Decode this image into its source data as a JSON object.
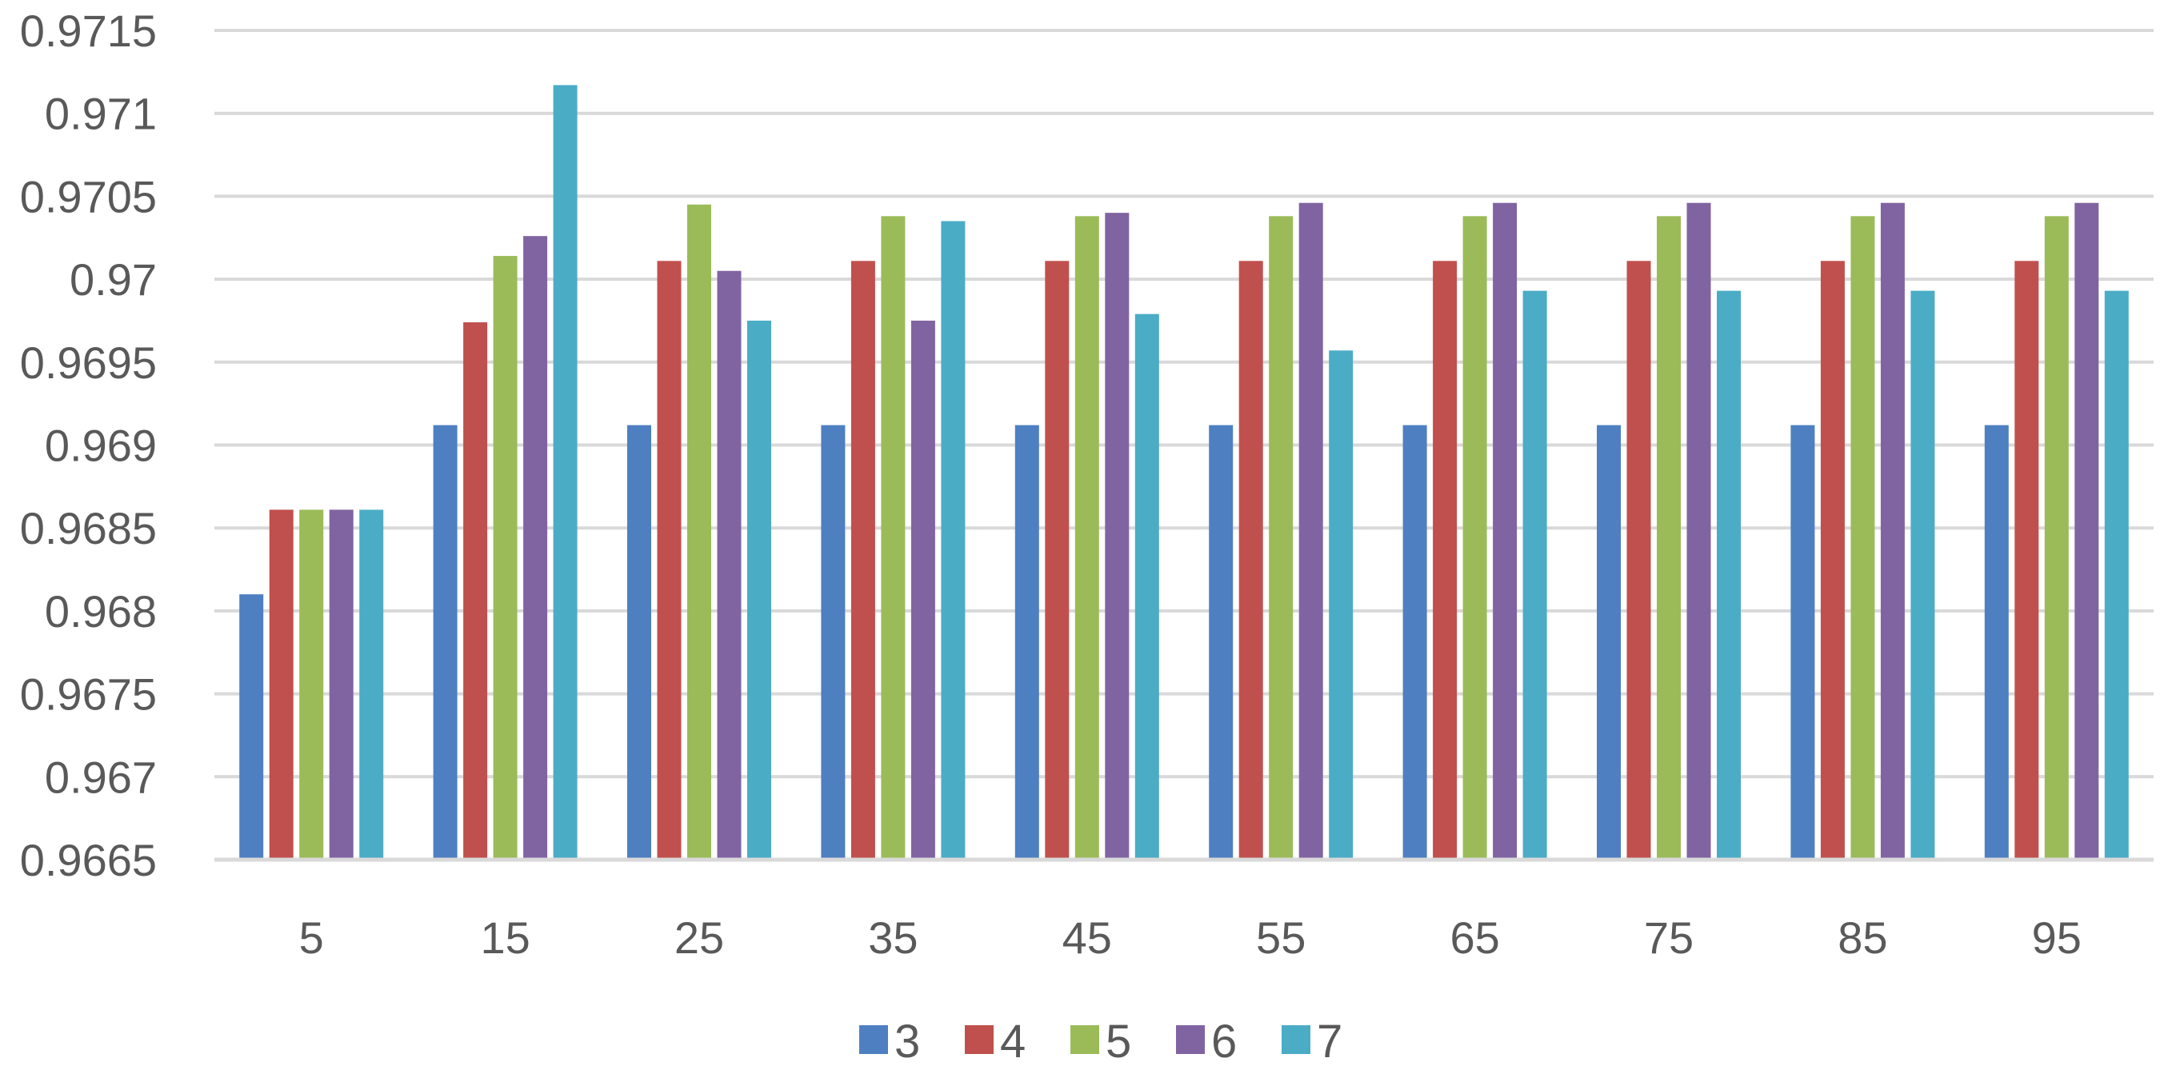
{
  "chart_data": {
    "type": "bar",
    "title": "",
    "xlabel": "",
    "ylabel": "",
    "categories": [
      "5",
      "15",
      "25",
      "35",
      "45",
      "55",
      "65",
      "75",
      "85",
      "95"
    ],
    "ylim": [
      0.9665,
      0.9715
    ],
    "yticks": [
      0.9665,
      0.967,
      0.9675,
      0.968,
      0.9685,
      0.969,
      0.9695,
      0.97,
      0.9705,
      0.971,
      0.9715
    ],
    "ytick_labels": [
      "0.9665",
      "0.967",
      "0.9675",
      "0.968",
      "0.9685",
      "0.969",
      "0.9695",
      "0.97",
      "0.9705",
      "0.971",
      "0.9715"
    ],
    "grid": true,
    "legend_position": "bottom",
    "series": [
      {
        "name": "3",
        "color": "#4e7fc1",
        "values": [
          0.9681,
          0.96912,
          0.96912,
          0.96912,
          0.96912,
          0.96912,
          0.96912,
          0.96912,
          0.96912,
          0.96912
        ]
      },
      {
        "name": "4",
        "color": "#c0504d",
        "values": [
          0.96861,
          0.96974,
          0.97011,
          0.97011,
          0.97011,
          0.97011,
          0.97011,
          0.97011,
          0.97011,
          0.97011
        ]
      },
      {
        "name": "5",
        "color": "#9bbb59",
        "values": [
          0.96861,
          0.97014,
          0.97045,
          0.97038,
          0.97038,
          0.97038,
          0.97038,
          0.97038,
          0.97038,
          0.97038
        ]
      },
      {
        "name": "6",
        "color": "#8064a2",
        "values": [
          0.96861,
          0.97026,
          0.97005,
          0.96975,
          0.9704,
          0.97046,
          0.97046,
          0.97046,
          0.97046,
          0.97046
        ]
      },
      {
        "name": "7",
        "color": "#4bacc6",
        "values": [
          0.96861,
          0.97117,
          0.96975,
          0.97035,
          0.96979,
          0.96957,
          0.96993,
          0.96993,
          0.96993,
          0.96993
        ]
      }
    ]
  }
}
